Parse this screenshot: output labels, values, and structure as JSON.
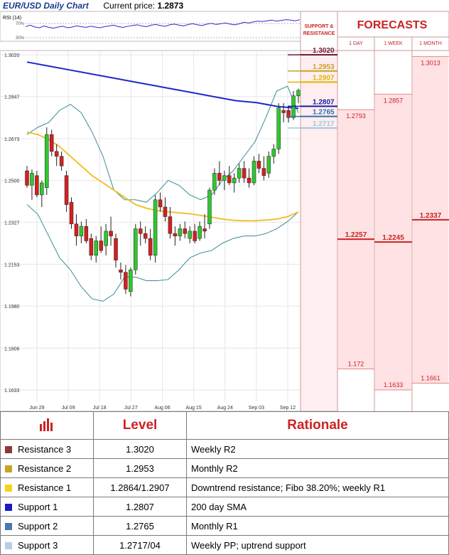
{
  "header": {
    "title": "EUR/USD Daily Chart",
    "price_label": "Current price:",
    "price_value": "1.2873"
  },
  "rsi_panel": {
    "label": "RSI (14)",
    "tick_upper": "70%",
    "tick_lower": "30%",
    "values": [
      58,
      62,
      57,
      55,
      60,
      56,
      54,
      57,
      59,
      55,
      57,
      60,
      58,
      56,
      59,
      57,
      55,
      58,
      60,
      62,
      58,
      56,
      59,
      61,
      63,
      60,
      58,
      62,
      64,
      61,
      59,
      63,
      65,
      62,
      60,
      64,
      66,
      63,
      61,
      65,
      67,
      64,
      66,
      68,
      65,
      63,
      66,
      70,
      68,
      71,
      73,
      72,
      74,
      76,
      73,
      75,
      77,
      76,
      74,
      77
    ]
  },
  "sr_panel": {
    "header": "SUPPORT & RESISTANCE",
    "levels": [
      {
        "value": "1.3020",
        "price": 1.302,
        "color": "#6b1f3a"
      },
      {
        "value": "1.2953",
        "price": 1.2953,
        "color": "#c9a227"
      },
      {
        "value": "1.2907",
        "price": 1.2907,
        "color": "#e0b400"
      },
      {
        "value": "1.2807",
        "price": 1.2807,
        "color": "#1a1aa6"
      },
      {
        "value": "1.2765",
        "price": 1.2765,
        "color": "#2f6fa8"
      },
      {
        "value": "1.2717",
        "price": 1.2717,
        "color": "#9fc7e0"
      }
    ]
  },
  "forecasts": {
    "title": "FORECASTS",
    "columns": [
      {
        "label": "1 DAY",
        "high": "1.2793",
        "high_val": 1.2793,
        "mid": "1.2257",
        "mid_val": 1.2257,
        "low": "1.172",
        "low_val": 1.172
      },
      {
        "label": "1 WEEK",
        "high": "1.2857",
        "high_val": 1.2857,
        "mid": "1.2245",
        "mid_val": 1.2245,
        "low": "1.1633",
        "low_val": 1.1633
      },
      {
        "label": "1 MONTH",
        "high": "1.3013",
        "high_val": 1.3013,
        "mid": "1.2337",
        "mid_val": 1.2337,
        "low": "1.1661",
        "low_val": 1.1661
      }
    ]
  },
  "chart_data": {
    "type": "candlestick",
    "title": "EUR/USD Daily Chart",
    "y_ticks": [
      "1.3020",
      "1.2847",
      "1.2673",
      "1.2500",
      "1.2327",
      "1.2153",
      "1.1980",
      "1.1806",
      "1.1633"
    ],
    "ylim": [
      1.1633,
      1.302
    ],
    "x_ticks": [
      "Jun 29",
      "Jul 09",
      "Jul 18",
      "Jul 27",
      "Aug 06",
      "Aug 15",
      "Aug 24",
      "Sep 03",
      "Sep 12"
    ],
    "colors": {
      "up": "#2ec82e",
      "down": "#d32020",
      "sma200": "#1c2bc9",
      "sma50": "#f2c12e",
      "bollinger": "#3a8a9a"
    },
    "candles": [
      {
        "o": 1.254,
        "h": 1.256,
        "l": 1.247,
        "c": 1.248
      },
      {
        "o": 1.248,
        "h": 1.2545,
        "l": 1.242,
        "c": 1.253
      },
      {
        "o": 1.252,
        "h": 1.254,
        "l": 1.243,
        "c": 1.244
      },
      {
        "o": 1.244,
        "h": 1.25,
        "l": 1.239,
        "c": 1.249
      },
      {
        "o": 1.247,
        "h": 1.272,
        "l": 1.244,
        "c": 1.269
      },
      {
        "o": 1.269,
        "h": 1.271,
        "l": 1.26,
        "c": 1.262
      },
      {
        "o": 1.262,
        "h": 1.265,
        "l": 1.256,
        "c": 1.26
      },
      {
        "o": 1.26,
        "h": 1.262,
        "l": 1.254,
        "c": 1.256
      },
      {
        "o": 1.252,
        "h": 1.254,
        "l": 1.237,
        "c": 1.24
      },
      {
        "o": 1.241,
        "h": 1.243,
        "l": 1.23,
        "c": 1.232
      },
      {
        "o": 1.232,
        "h": 1.236,
        "l": 1.223,
        "c": 1.227
      },
      {
        "o": 1.227,
        "h": 1.233,
        "l": 1.224,
        "c": 1.231
      },
      {
        "o": 1.231,
        "h": 1.234,
        "l": 1.224,
        "c": 1.225
      },
      {
        "o": 1.226,
        "h": 1.228,
        "l": 1.217,
        "c": 1.219
      },
      {
        "o": 1.219,
        "h": 1.227,
        "l": 1.216,
        "c": 1.225
      },
      {
        "o": 1.225,
        "h": 1.231,
        "l": 1.22,
        "c": 1.221
      },
      {
        "o": 1.223,
        "h": 1.232,
        "l": 1.219,
        "c": 1.229
      },
      {
        "o": 1.229,
        "h": 1.235,
        "l": 1.223,
        "c": 1.227
      },
      {
        "o": 1.226,
        "h": 1.228,
        "l": 1.214,
        "c": 1.217
      },
      {
        "o": 1.213,
        "h": 1.216,
        "l": 1.209,
        "c": 1.212
      },
      {
        "o": 1.212,
        "h": 1.215,
        "l": 1.203,
        "c": 1.205
      },
      {
        "o": 1.204,
        "h": 1.214,
        "l": 1.202,
        "c": 1.213
      },
      {
        "o": 1.213,
        "h": 1.232,
        "l": 1.211,
        "c": 1.23
      },
      {
        "o": 1.23,
        "h": 1.233,
        "l": 1.223,
        "c": 1.228
      },
      {
        "o": 1.228,
        "h": 1.231,
        "l": 1.224,
        "c": 1.226
      },
      {
        "o": 1.226,
        "h": 1.23,
        "l": 1.217,
        "c": 1.219
      },
      {
        "o": 1.219,
        "h": 1.244,
        "l": 1.216,
        "c": 1.242
      },
      {
        "o": 1.242,
        "h": 1.245,
        "l": 1.237,
        "c": 1.239
      },
      {
        "o": 1.239,
        "h": 1.243,
        "l": 1.233,
        "c": 1.235
      },
      {
        "o": 1.235,
        "h": 1.239,
        "l": 1.226,
        "c": 1.228
      },
      {
        "o": 1.228,
        "h": 1.231,
        "l": 1.223,
        "c": 1.227
      },
      {
        "o": 1.227,
        "h": 1.232,
        "l": 1.225,
        "c": 1.23
      },
      {
        "o": 1.23,
        "h": 1.233,
        "l": 1.226,
        "c": 1.228
      },
      {
        "o": 1.226,
        "h": 1.231,
        "l": 1.224,
        "c": 1.229
      },
      {
        "o": 1.229,
        "h": 1.232,
        "l": 1.224,
        "c": 1.225
      },
      {
        "o": 1.226,
        "h": 1.233,
        "l": 1.225,
        "c": 1.231
      },
      {
        "o": 1.23,
        "h": 1.236,
        "l": 1.226,
        "c": 1.229
      },
      {
        "o": 1.232,
        "h": 1.247,
        "l": 1.23,
        "c": 1.246
      },
      {
        "o": 1.246,
        "h": 1.255,
        "l": 1.244,
        "c": 1.253
      },
      {
        "o": 1.253,
        "h": 1.258,
        "l": 1.248,
        "c": 1.25
      },
      {
        "o": 1.25,
        "h": 1.254,
        "l": 1.246,
        "c": 1.252
      },
      {
        "o": 1.252,
        "h": 1.256,
        "l": 1.248,
        "c": 1.249
      },
      {
        "o": 1.249,
        "h": 1.253,
        "l": 1.245,
        "c": 1.251
      },
      {
        "o": 1.251,
        "h": 1.257,
        "l": 1.249,
        "c": 1.255
      },
      {
        "o": 1.255,
        "h": 1.258,
        "l": 1.249,
        "c": 1.251
      },
      {
        "o": 1.251,
        "h": 1.255,
        "l": 1.247,
        "c": 1.249
      },
      {
        "o": 1.249,
        "h": 1.26,
        "l": 1.248,
        "c": 1.258
      },
      {
        "o": 1.258,
        "h": 1.261,
        "l": 1.253,
        "c": 1.255
      },
      {
        "o": 1.255,
        "h": 1.26,
        "l": 1.25,
        "c": 1.252
      },
      {
        "o": 1.253,
        "h": 1.262,
        "l": 1.251,
        "c": 1.26
      },
      {
        "o": 1.26,
        "h": 1.265,
        "l": 1.257,
        "c": 1.263
      },
      {
        "o": 1.263,
        "h": 1.282,
        "l": 1.261,
        "c": 1.28
      },
      {
        "o": 1.279,
        "h": 1.282,
        "l": 1.274,
        "c": 1.278
      },
      {
        "o": 1.279,
        "h": 1.281,
        "l": 1.274,
        "c": 1.276
      },
      {
        "o": 1.276,
        "h": 1.287,
        "l": 1.275,
        "c": 1.285
      },
      {
        "o": 1.285,
        "h": 1.288,
        "l": 1.282,
        "c": 1.2873
      }
    ],
    "sma200": [
      1.299,
      1.2974,
      1.2958,
      1.2942,
      1.2926,
      1.291,
      1.2894,
      1.2878,
      1.2862,
      1.2846,
      1.283,
      1.2822,
      1.2806,
      1.2798
    ],
    "sma50": [
      1.27,
      1.269,
      1.267,
      1.264,
      1.26,
      1.256,
      1.252,
      1.249,
      1.246,
      1.243,
      1.24,
      1.2385,
      1.2375,
      1.237,
      1.2366,
      1.2362,
      1.2355,
      1.2348,
      1.234,
      1.2335,
      1.2333,
      1.2333,
      1.2336,
      1.234,
      1.235,
      1.237
    ],
    "bb_upper": [
      1.269,
      1.272,
      1.274,
      1.279,
      1.2815,
      1.278,
      1.27,
      1.26,
      1.246,
      1.242,
      1.242,
      1.241,
      1.245,
      1.25,
      1.248,
      1.244,
      1.242,
      1.244,
      1.25,
      1.254,
      1.26,
      1.266,
      1.276,
      1.287,
      1.289,
      1.278
    ],
    "bb_lower": [
      1.24,
      1.236,
      1.227,
      1.218,
      1.213,
      1.206,
      1.201,
      1.2,
      1.203,
      1.21,
      1.21,
      1.2085,
      1.2085,
      1.209,
      1.213,
      1.218,
      1.22,
      1.221,
      1.224,
      1.226,
      1.227,
      1.227,
      1.228,
      1.23,
      1.233,
      1.237
    ]
  },
  "table": {
    "header_level": "Level",
    "header_rationale": "Rationale",
    "rows": [
      {
        "name": "Resistance 3",
        "level": "1.3020",
        "rationale": "Weekly R2",
        "color": "#8b3a3a"
      },
      {
        "name": "Resistance 2",
        "level": "1.2953",
        "rationale": "Monthly R2",
        "color": "#c9a227"
      },
      {
        "name": "Resistance 1",
        "level": "1.2864/1.2907",
        "rationale": "Downtrend resistance; Fibo 38.20%; weekly R1",
        "color": "#f7d21a"
      },
      {
        "name": "Support 1",
        "level": "1.2807",
        "rationale": "200 day SMA",
        "color": "#1a1acc"
      },
      {
        "name": "Support 2",
        "level": "1.2765",
        "rationale": "Monthly R1",
        "color": "#4a78b0"
      },
      {
        "name": "Support 3",
        "level": "1.2717/04",
        "rationale": "Weekly PP; uptrend support",
        "color": "#b7cfe6"
      }
    ]
  }
}
